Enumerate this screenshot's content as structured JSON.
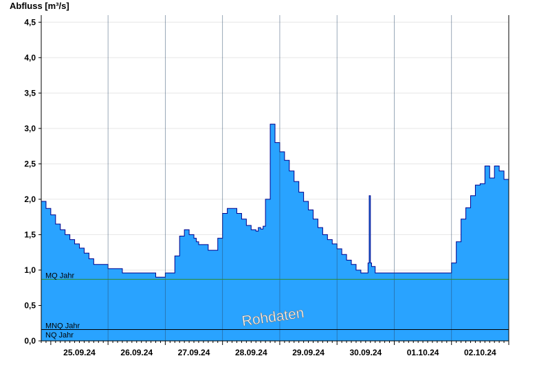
{
  "chart_data": {
    "type": "area",
    "ylabel": "Abfluss [m³/s]",
    "ylim": [
      0,
      4.6
    ],
    "xlim": [
      "2024-09-24T20:00",
      "2024-10-03T00:00"
    ],
    "y_ticks": [
      {
        "v": 0,
        "label": "0,0"
      },
      {
        "v": 0.5,
        "label": "0,5"
      },
      {
        "v": 1.0,
        "label": "1,0"
      },
      {
        "v": 1.5,
        "label": "1,5"
      },
      {
        "v": 2.0,
        "label": "2,0"
      },
      {
        "v": 2.5,
        "label": "2,5"
      },
      {
        "v": 3.0,
        "label": "3,0"
      },
      {
        "v": 3.5,
        "label": "3,5"
      },
      {
        "v": 4.0,
        "label": "4,0"
      },
      {
        "v": 4.5,
        "label": "4,5"
      }
    ],
    "x_day_labels": [
      {
        "date": "2024-09-25",
        "label": "25.09.24"
      },
      {
        "date": "2024-09-26",
        "label": "26.09.24"
      },
      {
        "date": "2024-09-27",
        "label": "27.09.24"
      },
      {
        "date": "2024-09-28",
        "label": "28.09.24"
      },
      {
        "date": "2024-09-29",
        "label": "29.09.24"
      },
      {
        "date": "2024-09-30",
        "label": "30.09.24"
      },
      {
        "date": "2024-10-01",
        "label": "01.10.24"
      },
      {
        "date": "2024-10-02",
        "label": "02.10.24"
      }
    ],
    "grid": true,
    "reference_lines": [
      {
        "name": "MQ Jahr",
        "value": 0.87,
        "color": "#2e8b2e"
      },
      {
        "name": "MNQ Jahr",
        "value": 0.16,
        "color": "#000000"
      },
      {
        "name": "NQ Jahr",
        "value": 0.0,
        "color": "#000000"
      }
    ],
    "watermark": "Rohdaten",
    "fill_color": "#29a3ff",
    "line_color": "#00008b",
    "series": [
      {
        "x": [
          "2024-09-24T20:00",
          "2024-09-24T22:00",
          "2024-09-25T00:00",
          "2024-09-25T02:00",
          "2024-09-25T04:00",
          "2024-09-25T06:00",
          "2024-09-25T08:00",
          "2024-09-25T10:00",
          "2024-09-25T12:00",
          "2024-09-25T14:00",
          "2024-09-25T16:00",
          "2024-09-25T18:00",
          "2024-09-26T00:00",
          "2024-09-26T06:00",
          "2024-09-26T12:00",
          "2024-09-26T16:00",
          "2024-09-26T18:00",
          "2024-09-26T20:00",
          "2024-09-26T22:00",
          "2024-09-27T00:00",
          "2024-09-27T02:00",
          "2024-09-27T04:00",
          "2024-09-27T06:00",
          "2024-09-27T08:00",
          "2024-09-27T10:00",
          "2024-09-27T12:00",
          "2024-09-27T13:00",
          "2024-09-27T14:00",
          "2024-09-27T18:00",
          "2024-09-27T20:00",
          "2024-09-27T22:00",
          "2024-09-28T00:00",
          "2024-09-28T02:00",
          "2024-09-28T06:00",
          "2024-09-28T08:00",
          "2024-09-28T10:00",
          "2024-09-28T12:00",
          "2024-09-28T14:00",
          "2024-09-28T15:00",
          "2024-09-28T16:00",
          "2024-09-28T17:00",
          "2024-09-28T18:00",
          "2024-09-28T20:00",
          "2024-09-28T22:00",
          "2024-09-29T00:00",
          "2024-09-29T02:00",
          "2024-09-29T04:00",
          "2024-09-29T06:00",
          "2024-09-29T08:00",
          "2024-09-29T10:00",
          "2024-09-29T12:00",
          "2024-09-29T14:00",
          "2024-09-29T16:00",
          "2024-09-29T18:00",
          "2024-09-29T20:00",
          "2024-09-29T22:00",
          "2024-09-30T00:00",
          "2024-09-30T02:00",
          "2024-09-30T04:00",
          "2024-09-30T06:00",
          "2024-09-30T08:00",
          "2024-09-30T10:00",
          "2024-09-30T12:00",
          "2024-09-30T13:00",
          "2024-09-30T13:30",
          "2024-09-30T14:00",
          "2024-09-30T14:30",
          "2024-09-30T16:00",
          "2024-09-30T18:00",
          "2024-10-01T00:00",
          "2024-10-01T12:00",
          "2024-10-01T20:00",
          "2024-10-01T22:00",
          "2024-10-02T00:00",
          "2024-10-02T02:00",
          "2024-10-02T04:00",
          "2024-10-02T06:00",
          "2024-10-02T08:00",
          "2024-10-02T10:00",
          "2024-10-02T12:00",
          "2024-10-02T14:00",
          "2024-10-02T16:00",
          "2024-10-02T18:00",
          "2024-10-02T20:00",
          "2024-10-02T22:00",
          "2024-10-03T00:00"
        ],
        "values": [
          1.97,
          1.87,
          1.78,
          1.65,
          1.57,
          1.5,
          1.43,
          1.37,
          1.31,
          1.24,
          1.16,
          1.08,
          1.02,
          0.96,
          0.96,
          0.96,
          0.96,
          0.9,
          0.9,
          0.96,
          0.96,
          1.2,
          1.48,
          1.57,
          1.5,
          1.45,
          1.4,
          1.36,
          1.28,
          1.28,
          1.45,
          1.8,
          1.87,
          1.8,
          1.72,
          1.63,
          1.57,
          1.55,
          1.6,
          1.58,
          1.62,
          2.0,
          3.06,
          2.8,
          2.67,
          2.55,
          2.4,
          2.25,
          2.1,
          1.97,
          1.85,
          1.72,
          1.6,
          1.5,
          1.43,
          1.37,
          1.3,
          1.22,
          1.14,
          1.08,
          1.0,
          0.96,
          0.96,
          1.1,
          2.05,
          1.1,
          1.05,
          0.96,
          0.96,
          0.96,
          0.96,
          0.96,
          0.96,
          1.1,
          1.4,
          1.72,
          1.88,
          2.05,
          2.2,
          2.22,
          2.47,
          2.3,
          2.47,
          2.4,
          2.28,
          2.2
        ]
      }
    ]
  }
}
